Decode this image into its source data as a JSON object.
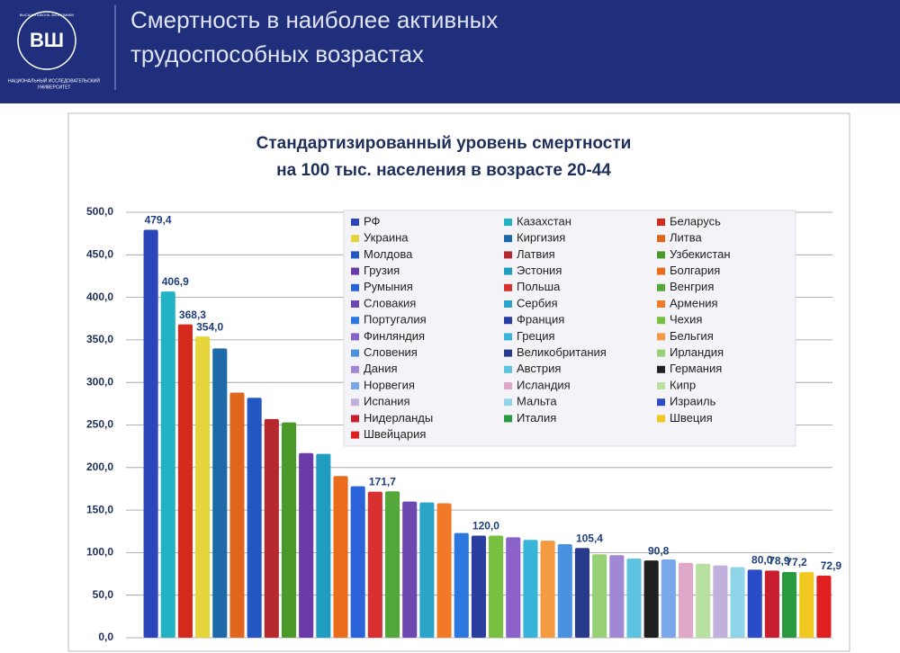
{
  "header": {
    "title": [
      "Смертность в наиболее активных",
      "трудоспособных возрастах"
    ],
    "logo_letters": "ВШ",
    "logo_ring": "ВЫСШАЯ ШКОЛА ЭКОНОМИКИ",
    "university": [
      "НАЦИОНАЛЬНЫЙ ИССЛЕДОВАТЕЛЬСКИЙ",
      "УНИВЕРСИТЕТ"
    ]
  },
  "chart_data": {
    "type": "bar",
    "title": [
      "Стандартизированный уровень смертности",
      "на 100 тыс. населения  в возрасте 20-44"
    ],
    "categories": [
      "РФ",
      "Казахстан",
      "Беларусь",
      "Украина",
      "Киргизия",
      "Литва",
      "Молдова",
      "Латвия",
      "Узбекистан",
      "Грузия",
      "Эстония",
      "Болгария",
      "Румыния",
      "Польша",
      "Венгрия",
      "Словакия",
      "Сербия",
      "Армения",
      "Португалия",
      "Франция",
      "Чехия",
      "Финляндия",
      "Греция",
      "Бельгия",
      "Словения",
      "Великобритания",
      "Ирландия",
      "Дания",
      "Австрия",
      "Германия",
      "Норвегия",
      "Исландия",
      "Кипр",
      "Испания",
      "Мальта",
      "Израиль",
      "Нидерланды",
      "Италия",
      "Швеция",
      "Швейцария"
    ],
    "values": [
      479.4,
      406.9,
      368.3,
      354.0,
      340,
      288,
      282,
      257,
      253,
      217,
      216,
      190,
      178,
      171.7,
      172,
      160,
      159,
      158,
      123,
      120.0,
      120,
      118,
      115,
      114,
      110,
      105.4,
      98,
      97,
      93,
      90.8,
      92,
      88,
      87,
      85,
      83,
      80.0,
      78.9,
      77.2,
      77,
      72.9
    ],
    "value_labels": [
      "479,4",
      "406,9",
      "368,3",
      "354,0",
      null,
      null,
      null,
      null,
      null,
      null,
      null,
      null,
      null,
      "171,7",
      null,
      null,
      null,
      null,
      null,
      "120,0",
      null,
      null,
      null,
      null,
      null,
      "105,4",
      null,
      null,
      null,
      "90,8",
      null,
      null,
      null,
      null,
      null,
      "80,0",
      "78,9",
      "77,2",
      null,
      "72,9"
    ],
    "colors": [
      "#2a46b8",
      "#21b3c4",
      "#d42a1e",
      "#e6d53a",
      "#1e6aa8",
      "#e0661e",
      "#2256c2",
      "#b5282e",
      "#4a9a2a",
      "#6a3aa8",
      "#1f9cc0",
      "#ea6b1c",
      "#2a64d8",
      "#d83030",
      "#54a83a",
      "#6d48b0",
      "#2aa4c8",
      "#f07a28",
      "#2c78e0",
      "#2a3ea0",
      "#78c040",
      "#8a62c8",
      "#38b4d8",
      "#f49a40",
      "#4a92e0",
      "#283a8c",
      "#98d078",
      "#a088d4",
      "#5cc4e0",
      "#202020",
      "#78a8ea",
      "#e0a8c8",
      "#b8e0a0",
      "#c0b0dc",
      "#90d4e8",
      "#2a4cc8",
      "#c81e2e",
      "#2a9a40",
      "#f0c820",
      "#e02020"
    ],
    "ylim": [
      0,
      500
    ],
    "yticks": [
      {
        "value": 0,
        "label": "0,0"
      },
      {
        "value": 50,
        "label": "50,0"
      },
      {
        "value": 100,
        "label": "100,0"
      },
      {
        "value": 150,
        "label": "150,0"
      },
      {
        "value": 200,
        "label": "200,0"
      },
      {
        "value": 250,
        "label": "250,0"
      },
      {
        "value": 300,
        "label": "300,0"
      },
      {
        "value": 350,
        "label": "350,0"
      },
      {
        "value": 400,
        "label": "400,0"
      },
      {
        "value": 450,
        "label": "450,0"
      },
      {
        "value": 500,
        "label": "500,0"
      }
    ],
    "grid": true
  }
}
